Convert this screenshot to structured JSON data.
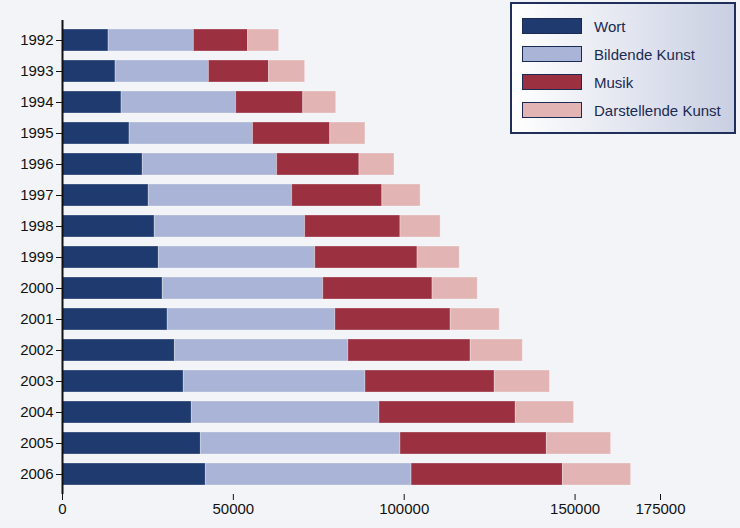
{
  "chart_data": {
    "type": "bar",
    "orientation": "horizontal",
    "stacked": true,
    "legend": "top-right",
    "categories": [
      "1992",
      "1993",
      "1994",
      "1995",
      "1996",
      "1997",
      "1998",
      "1999",
      "2000",
      "2001",
      "2002",
      "2003",
      "2004",
      "2005",
      "2006"
    ],
    "series": [
      {
        "name": "Wort",
        "color": "#1f3a6e",
        "values": [
          13500,
          15550,
          17300,
          19650,
          23500,
          25250,
          27000,
          28200,
          29350,
          30800,
          32900,
          35500,
          37850,
          40500,
          41950
        ]
      },
      {
        "name": "Bildende Kunst",
        "color": "#a9b4d6",
        "values": [
          24950,
          27300,
          33500,
          36100,
          39300,
          41950,
          44000,
          45750,
          46950,
          49050,
          50750,
          53150,
          54900,
          58400,
          60200
        ]
      },
      {
        "name": "Musik",
        "color": "#9b3040",
        "values": [
          15850,
          17600,
          19650,
          22600,
          24100,
          26400,
          27900,
          29950,
          32000,
          33750,
          35800,
          37850,
          39900,
          42850,
          44300
        ]
      },
      {
        "name": "Darstellende Kunst",
        "color": "#e2b4b4",
        "values": [
          9100,
          10550,
          9650,
          10300,
          10250,
          11200,
          11750,
          12350,
          13200,
          14350,
          15250,
          16150,
          17050,
          18800,
          19950
        ]
      }
    ],
    "xlim": [
      0,
      175000
    ],
    "xticks": [
      0,
      50000,
      100000,
      150000,
      175000
    ],
    "grid": false
  }
}
